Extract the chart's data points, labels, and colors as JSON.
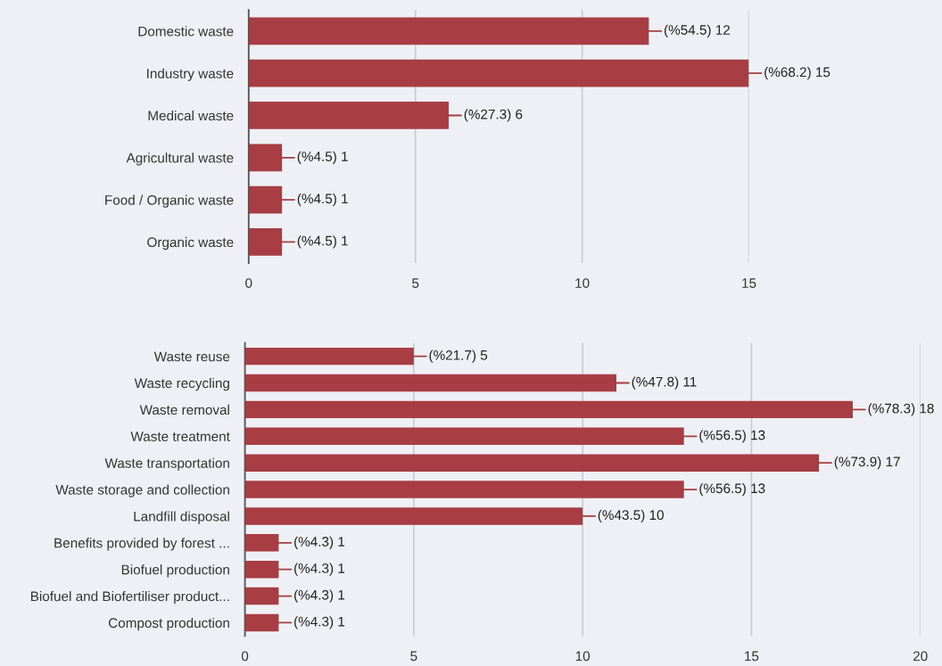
{
  "chart_data": [
    {
      "type": "bar",
      "orientation": "horizontal",
      "categories": [
        "Domestic waste",
        "Industry waste",
        "Medical waste",
        "Agricultural waste",
        "Food / Organic waste",
        "Organic waste"
      ],
      "values": [
        12,
        15,
        6,
        1,
        1,
        1
      ],
      "color": "#a83d44",
      "value_labels": [
        "(%54.5) 12",
        "(%68.2) 15",
        "(%27.3) 6",
        "(%4.5) 1",
        "(%4.5) 1",
        "(%4.5) 1"
      ],
      "xlim": [
        0,
        15
      ],
      "xticks": [
        0,
        5,
        10,
        15
      ],
      "grid": "x"
    },
    {
      "type": "bar",
      "orientation": "horizontal",
      "categories": [
        "Waste reuse",
        "Waste recycling",
        "Waste removal",
        "Waste treatment",
        "Waste transportation",
        "Waste storage and collection",
        "Landfill disposal",
        "Benefits provided by forest ...",
        "Biofuel production",
        "Biofuel and Biofertiliser product...",
        "Compost production"
      ],
      "values": [
        5,
        11,
        18,
        13,
        17,
        13,
        10,
        1,
        1,
        1,
        1
      ],
      "color": "#a83d44",
      "value_labels": [
        "(%21.7) 5",
        "(%47.8) 11",
        "(%78.3) 18",
        "(%56.5) 13",
        "(%73.9) 17",
        "(%56.5) 13",
        "(%43.5) 10",
        "(%4.3) 1",
        "(%4.3) 1",
        "(%4.3) 1",
        "(%4.3) 1"
      ],
      "xlim": [
        0,
        20
      ],
      "xticks": [
        0,
        5,
        10,
        15,
        20
      ],
      "grid": "x"
    }
  ]
}
